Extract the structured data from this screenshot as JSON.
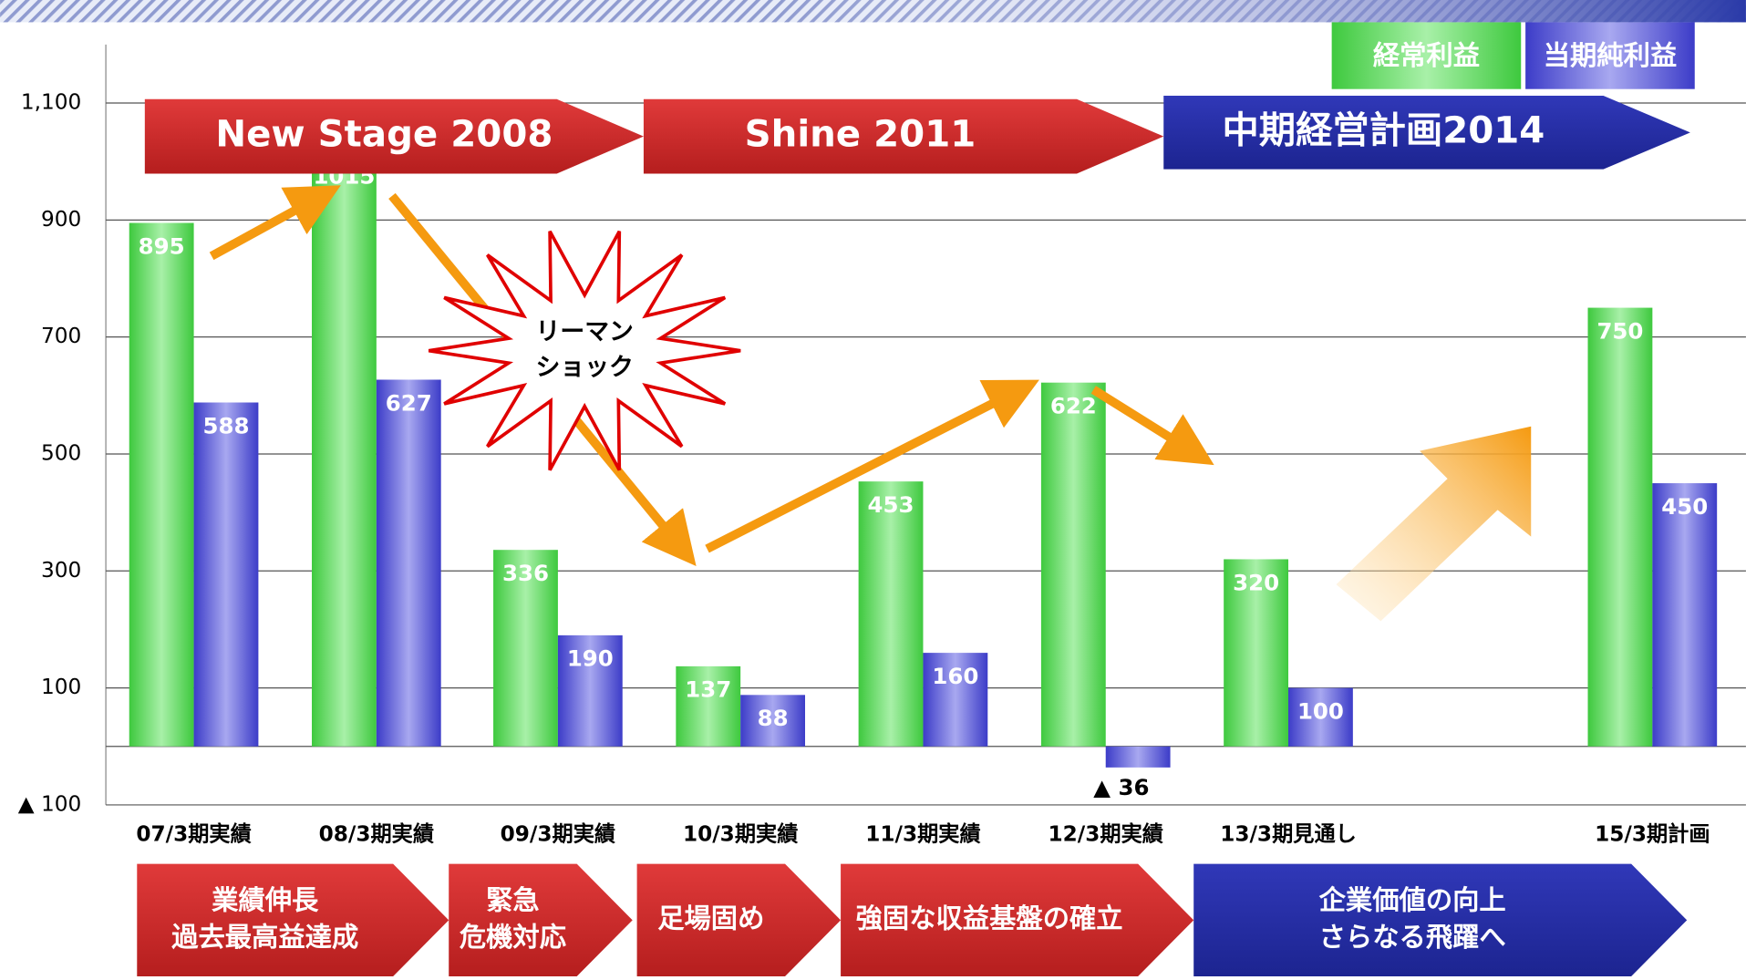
{
  "chart_data": {
    "type": "bar",
    "categories": [
      "07/3期実績",
      "08/3期実績",
      "09/3期実績",
      "10/3期実績",
      "11/3期実績",
      "12/3期実績",
      "13/3期見通し",
      null,
      "15/3期計画"
    ],
    "series": [
      {
        "name": "経常利益",
        "color": "#3ec93e",
        "values": [
          895,
          1015,
          336,
          137,
          453,
          622,
          320,
          null,
          750
        ]
      },
      {
        "name": "当期純利益",
        "color": "#3c3cc8",
        "values": [
          588,
          627,
          190,
          88,
          160,
          -36,
          100,
          null,
          450
        ],
        "value_labels": [
          "588",
          "627",
          "190",
          "88",
          "160",
          "▲ 36",
          "100",
          null,
          "450"
        ]
      }
    ],
    "ylim": [
      -100,
      1200
    ],
    "yticks": [
      {
        "value": -100,
        "label": "▲ 100"
      },
      100,
      300,
      500,
      700,
      900,
      {
        "value": 1100,
        "label": "1,100"
      }
    ],
    "grid": true,
    "top_phases": [
      "New Stage 2008",
      "Shine 2011",
      "中期経営計画2014"
    ],
    "bottom_phases": [
      [
        "業績伸長",
        "過去最高益達成"
      ],
      [
        "緊急",
        "危機対応"
      ],
      [
        "足場固め"
      ],
      [
        "強固な収益基盤の確立"
      ],
      [
        "企業価値の向上",
        "さらなる飛躍へ"
      ]
    ],
    "annotation": [
      "リーマン",
      "ショック"
    ]
  }
}
